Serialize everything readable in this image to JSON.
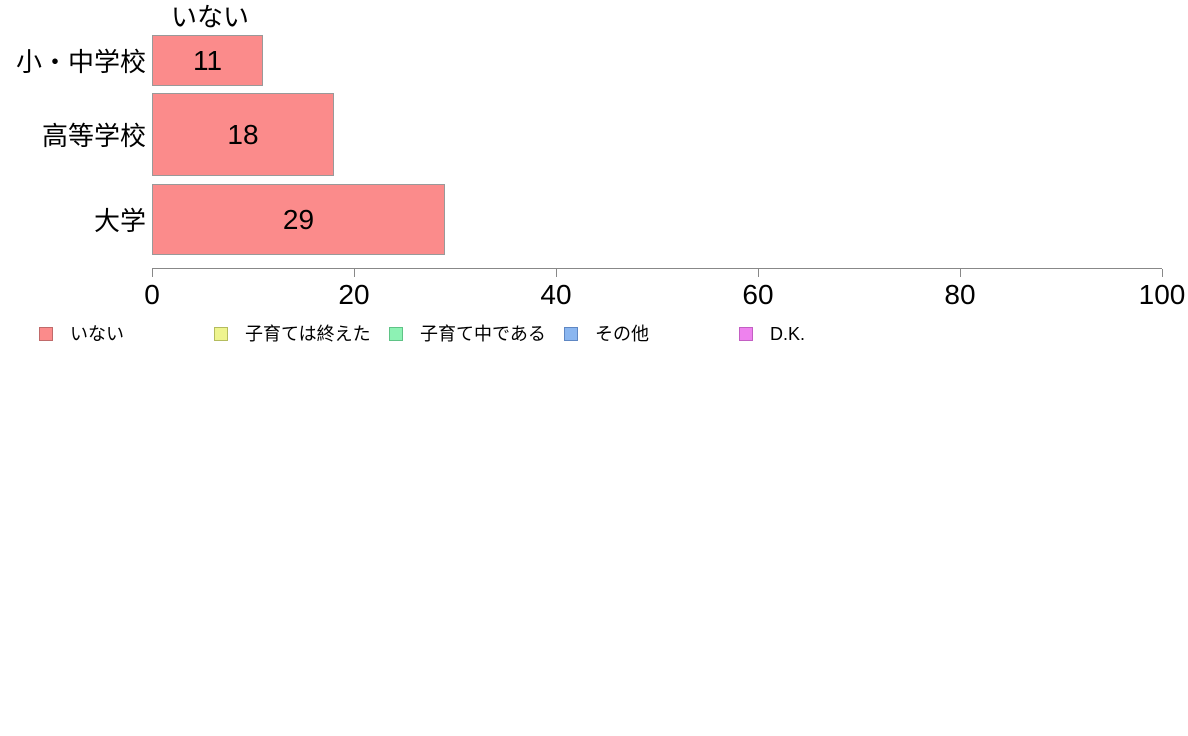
{
  "chart_data": {
    "type": "bar",
    "orientation": "horizontal",
    "title": "いない",
    "categories": [
      "小・中学校",
      "高等学校",
      "大学"
    ],
    "series": [
      {
        "name": "いない",
        "values": [
          11,
          18,
          29
        ]
      }
    ],
    "bar_value_labels": [
      "11",
      "18",
      "29"
    ],
    "xlabel": "",
    "ylabel": "",
    "xlim": [
      0,
      100
    ],
    "x_ticks": [
      "0",
      "20",
      "40",
      "60",
      "80",
      "100"
    ],
    "x_tick_values": [
      0,
      20,
      40,
      60,
      80,
      100
    ],
    "grid": false,
    "legend_position": "bottom-left",
    "colors": {
      "bar_fill": "#FB8B8B",
      "bar_border": "#999999",
      "axis": "#888888",
      "text": "#000000"
    },
    "legend": [
      {
        "label": "いない",
        "fill": "#FB8B8B",
        "border": "#C06A6A"
      },
      {
        "label": "子育ては終えた",
        "fill": "#EEF48E",
        "border": "#B4BC5E"
      },
      {
        "label": "子育て中である",
        "fill": "#8DF2B4",
        "border": "#5FC386"
      },
      {
        "label": "その他",
        "fill": "#8AB6F0",
        "border": "#5F87C3"
      },
      {
        "label": "D.K.",
        "fill": "#EE82EE",
        "border": "#C35FC3"
      }
    ]
  }
}
